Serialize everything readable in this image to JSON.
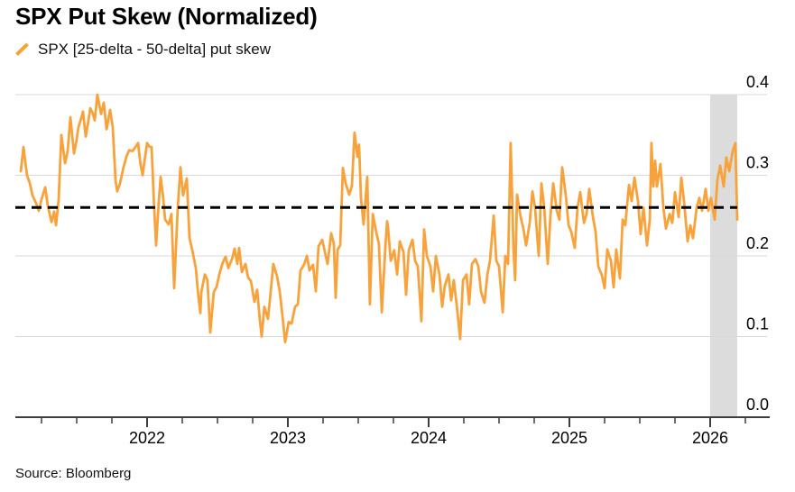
{
  "header": {
    "title": "SPX Put Skew (Normalized)"
  },
  "legend": {
    "marker_icon": "slash-icon",
    "label": "SPX [25-delta - 50-delta] put skew"
  },
  "footer": {
    "source": "Source: Bloomberg"
  },
  "colors": {
    "line": "#F7A23B",
    "grid": "#D9D9D9",
    "band": "#DCDCDC",
    "mean_line": "#000000",
    "axis": "#3D3D3D",
    "text": "#000000"
  },
  "chart_data": {
    "type": "line",
    "title": "SPX Put Skew (Normalized)",
    "x_unit": "decimal_year",
    "xlim": [
      2021.064,
      2026.423
    ],
    "ylim": [
      0,
      0.436
    ],
    "grid": "horizontal",
    "legend_position": "top-left",
    "yticks": {
      "values": [
        0,
        0.1,
        0.2,
        0.3,
        0.4
      ],
      "labels": [
        "0.0",
        "0.1",
        "0.2",
        "0.3",
        "0.4"
      ]
    },
    "xticks": {
      "major_values": [
        2022,
        2023,
        2024,
        2025,
        2026
      ],
      "major_labels": [
        "2022",
        "2023",
        "2024",
        "2025",
        "2026"
      ],
      "minor_step": 0.25,
      "minor_range": [
        2021.25,
        2026.25
      ]
    },
    "mean_line_value": 0.26,
    "highlight_band_x": [
      2026.0,
      2026.192
    ],
    "series": [
      {
        "name": "SPX [25-delta - 50-delta] put skew",
        "color_key": "line",
        "points": [
          [
            2021.103,
            0.305
          ],
          [
            2021.122,
            0.335
          ],
          [
            2021.147,
            0.3
          ],
          [
            2021.167,
            0.29
          ],
          [
            2021.186,
            0.275
          ],
          [
            2021.212,
            0.265
          ],
          [
            2021.231,
            0.256
          ],
          [
            2021.25,
            0.27
          ],
          [
            2021.276,
            0.285
          ],
          [
            2021.295,
            0.262
          ],
          [
            2021.321,
            0.242
          ],
          [
            2021.34,
            0.255
          ],
          [
            2021.353,
            0.238
          ],
          [
            2021.372,
            0.27
          ],
          [
            2021.391,
            0.35
          ],
          [
            2021.417,
            0.315
          ],
          [
            2021.436,
            0.33
          ],
          [
            2021.455,
            0.372
          ],
          [
            2021.481,
            0.327
          ],
          [
            2021.513,
            0.36
          ],
          [
            2021.545,
            0.379
          ],
          [
            2021.564,
            0.348
          ],
          [
            2021.596,
            0.383
          ],
          [
            2021.628,
            0.368
          ],
          [
            2021.647,
            0.4
          ],
          [
            2021.673,
            0.376
          ],
          [
            2021.692,
            0.39
          ],
          [
            2021.712,
            0.357
          ],
          [
            2021.737,
            0.381
          ],
          [
            2021.756,
            0.36
          ],
          [
            2021.776,
            0.293
          ],
          [
            2021.788,
            0.28
          ],
          [
            2021.808,
            0.29
          ],
          [
            2021.833,
            0.31
          ],
          [
            2021.853,
            0.323
          ],
          [
            2021.872,
            0.331
          ],
          [
            2021.897,
            0.33
          ],
          [
            2021.917,
            0.335
          ],
          [
            2021.936,
            0.34
          ],
          [
            2021.968,
            0.3
          ],
          [
            2022.0,
            0.34
          ],
          [
            2022.032,
            0.335
          ],
          [
            2022.064,
            0.213
          ],
          [
            2022.096,
            0.298
          ],
          [
            2022.128,
            0.245
          ],
          [
            2022.154,
            0.239
          ],
          [
            2022.173,
            0.252
          ],
          [
            2022.192,
            0.16
          ],
          [
            2022.218,
            0.26
          ],
          [
            2022.237,
            0.31
          ],
          [
            2022.256,
            0.275
          ],
          [
            2022.282,
            0.296
          ],
          [
            2022.301,
            0.222
          ],
          [
            2022.321,
            0.207
          ],
          [
            2022.346,
            0.185
          ],
          [
            2022.378,
            0.129
          ],
          [
            2022.385,
            0.155
          ],
          [
            2022.41,
            0.177
          ],
          [
            2022.429,
            0.17
          ],
          [
            2022.449,
            0.105
          ],
          [
            2022.474,
            0.155
          ],
          [
            2022.494,
            0.162
          ],
          [
            2022.513,
            0.177
          ],
          [
            2022.538,
            0.192
          ],
          [
            2022.558,
            0.199
          ],
          [
            2022.577,
            0.185
          ],
          [
            2022.603,
            0.196
          ],
          [
            2022.622,
            0.209
          ],
          [
            2022.641,
            0.19
          ],
          [
            2022.654,
            0.21
          ],
          [
            2022.673,
            0.18
          ],
          [
            2022.699,
            0.19
          ],
          [
            2022.718,
            0.173
          ],
          [
            2022.737,
            0.169
          ],
          [
            2022.763,
            0.143
          ],
          [
            2022.782,
            0.158
          ],
          [
            2022.801,
            0.12
          ],
          [
            2022.814,
            0.1
          ],
          [
            2022.833,
            0.137
          ],
          [
            2022.859,
            0.122
          ],
          [
            2022.878,
            0.156
          ],
          [
            2022.897,
            0.19
          ],
          [
            2022.923,
            0.175
          ],
          [
            2022.942,
            0.156
          ],
          [
            2022.962,
            0.125
          ],
          [
            2022.981,
            0.093
          ],
          [
            2023.006,
            0.118
          ],
          [
            2023.026,
            0.116
          ],
          [
            2023.051,
            0.137
          ],
          [
            2023.071,
            0.14
          ],
          [
            2023.09,
            0.182
          ],
          [
            2023.115,
            0.189
          ],
          [
            2023.135,
            0.2
          ],
          [
            2023.154,
            0.182
          ],
          [
            2023.179,
            0.189
          ],
          [
            2023.199,
            0.156
          ],
          [
            2023.218,
            0.212
          ],
          [
            2023.244,
            0.22
          ],
          [
            2023.263,
            0.205
          ],
          [
            2023.282,
            0.19
          ],
          [
            2023.308,
            0.228
          ],
          [
            2023.327,
            0.215
          ],
          [
            2023.34,
            0.148
          ],
          [
            2023.353,
            0.208
          ],
          [
            2023.372,
            0.213
          ],
          [
            2023.391,
            0.309
          ],
          [
            2023.41,
            0.29
          ],
          [
            2023.436,
            0.276
          ],
          [
            2023.455,
            0.287
          ],
          [
            2023.474,
            0.353
          ],
          [
            2023.494,
            0.323
          ],
          [
            2023.506,
            0.338
          ],
          [
            2023.519,
            0.272
          ],
          [
            2023.538,
            0.239
          ],
          [
            2023.564,
            0.298
          ],
          [
            2023.583,
            0.14
          ],
          [
            2023.603,
            0.252
          ],
          [
            2023.628,
            0.229
          ],
          [
            2023.647,
            0.215
          ],
          [
            2023.667,
            0.13
          ],
          [
            2023.692,
            0.21
          ],
          [
            2023.705,
            0.243
          ],
          [
            2023.712,
            0.234
          ],
          [
            2023.731,
            0.194
          ],
          [
            2023.756,
            0.207
          ],
          [
            2023.776,
            0.177
          ],
          [
            2023.795,
            0.218
          ],
          [
            2023.821,
            0.205
          ],
          [
            2023.84,
            0.152
          ],
          [
            2023.859,
            0.207
          ],
          [
            2023.885,
            0.22
          ],
          [
            2023.904,
            0.194
          ],
          [
            2023.923,
            0.187
          ],
          [
            2023.949,
            0.119
          ],
          [
            2023.968,
            0.233
          ],
          [
            2023.987,
            0.2
          ],
          [
            2024.013,
            0.187
          ],
          [
            2024.032,
            0.156
          ],
          [
            2024.051,
            0.2
          ],
          [
            2024.077,
            0.177
          ],
          [
            2024.096,
            0.137
          ],
          [
            2024.115,
            0.163
          ],
          [
            2024.141,
            0.177
          ],
          [
            2024.16,
            0.145
          ],
          [
            2024.179,
            0.17
          ],
          [
            2024.205,
            0.13
          ],
          [
            2024.224,
            0.097
          ],
          [
            2024.244,
            0.17
          ],
          [
            2024.269,
            0.177
          ],
          [
            2024.288,
            0.14
          ],
          [
            2024.308,
            0.19
          ],
          [
            2024.333,
            0.196
          ],
          [
            2024.353,
            0.187
          ],
          [
            2024.372,
            0.156
          ],
          [
            2024.397,
            0.142
          ],
          [
            2024.417,
            0.177
          ],
          [
            2024.436,
            0.194
          ],
          [
            2024.462,
            0.25
          ],
          [
            2024.481,
            0.194
          ],
          [
            2024.5,
            0.187
          ],
          [
            2024.526,
            0.13
          ],
          [
            2024.545,
            0.2
          ],
          [
            2024.564,
            0.19
          ],
          [
            2024.583,
            0.34
          ],
          [
            2024.603,
            0.207
          ],
          [
            2024.615,
            0.17
          ],
          [
            2024.628,
            0.276
          ],
          [
            2024.654,
            0.248
          ],
          [
            2024.673,
            0.234
          ],
          [
            2024.692,
            0.213
          ],
          [
            2024.718,
            0.241
          ],
          [
            2024.737,
            0.28
          ],
          [
            2024.756,
            0.26
          ],
          [
            2024.782,
            0.2
          ],
          [
            2024.801,
            0.29
          ],
          [
            2024.821,
            0.26
          ],
          [
            2024.846,
            0.19
          ],
          [
            2024.865,
            0.248
          ],
          [
            2024.885,
            0.29
          ],
          [
            2024.91,
            0.256
          ],
          [
            2024.929,
            0.245
          ],
          [
            2024.949,
            0.31
          ],
          [
            2024.974,
            0.276
          ],
          [
            2024.994,
            0.238
          ],
          [
            2025.013,
            0.23
          ],
          [
            2025.038,
            0.21
          ],
          [
            2025.058,
            0.26
          ],
          [
            2025.077,
            0.279
          ],
          [
            2025.103,
            0.241
          ],
          [
            2025.122,
            0.252
          ],
          [
            2025.141,
            0.283
          ],
          [
            2025.167,
            0.248
          ],
          [
            2025.186,
            0.23
          ],
          [
            2025.205,
            0.187
          ],
          [
            2025.231,
            0.176
          ],
          [
            2025.25,
            0.16
          ],
          [
            2025.269,
            0.208
          ],
          [
            2025.295,
            0.194
          ],
          [
            2025.314,
            0.161
          ],
          [
            2025.333,
            0.208
          ],
          [
            2025.359,
            0.172
          ],
          [
            2025.378,
            0.245
          ],
          [
            2025.397,
            0.238
          ],
          [
            2025.423,
            0.288
          ],
          [
            2025.442,
            0.268
          ],
          [
            2025.462,
            0.297
          ],
          [
            2025.487,
            0.268
          ],
          [
            2025.506,
            0.227
          ],
          [
            2025.526,
            0.26
          ],
          [
            2025.551,
            0.213
          ],
          [
            2025.571,
            0.245
          ],
          [
            2025.583,
            0.34
          ],
          [
            2025.596,
            0.286
          ],
          [
            2025.609,
            0.318
          ],
          [
            2025.622,
            0.286
          ],
          [
            2025.647,
            0.314
          ],
          [
            2025.667,
            0.26
          ],
          [
            2025.686,
            0.234
          ],
          [
            2025.712,
            0.252
          ],
          [
            2025.731,
            0.241
          ],
          [
            2025.75,
            0.279
          ],
          [
            2025.776,
            0.248
          ],
          [
            2025.795,
            0.297
          ],
          [
            2025.814,
            0.268
          ],
          [
            2025.84,
            0.218
          ],
          [
            2025.859,
            0.238
          ],
          [
            2025.878,
            0.222
          ],
          [
            2025.904,
            0.26
          ],
          [
            2025.923,
            0.272
          ],
          [
            2025.942,
            0.256
          ],
          [
            2025.968,
            0.283
          ],
          [
            2025.987,
            0.256
          ],
          [
            2026.006,
            0.272
          ],
          [
            2026.032,
            0.245
          ],
          [
            2026.051,
            0.294
          ],
          [
            2026.071,
            0.312
          ],
          [
            2026.096,
            0.286
          ],
          [
            2026.115,
            0.322
          ],
          [
            2026.135,
            0.305
          ],
          [
            2026.16,
            0.33
          ],
          [
            2026.179,
            0.34
          ],
          [
            2026.192,
            0.245
          ]
        ]
      }
    ]
  }
}
